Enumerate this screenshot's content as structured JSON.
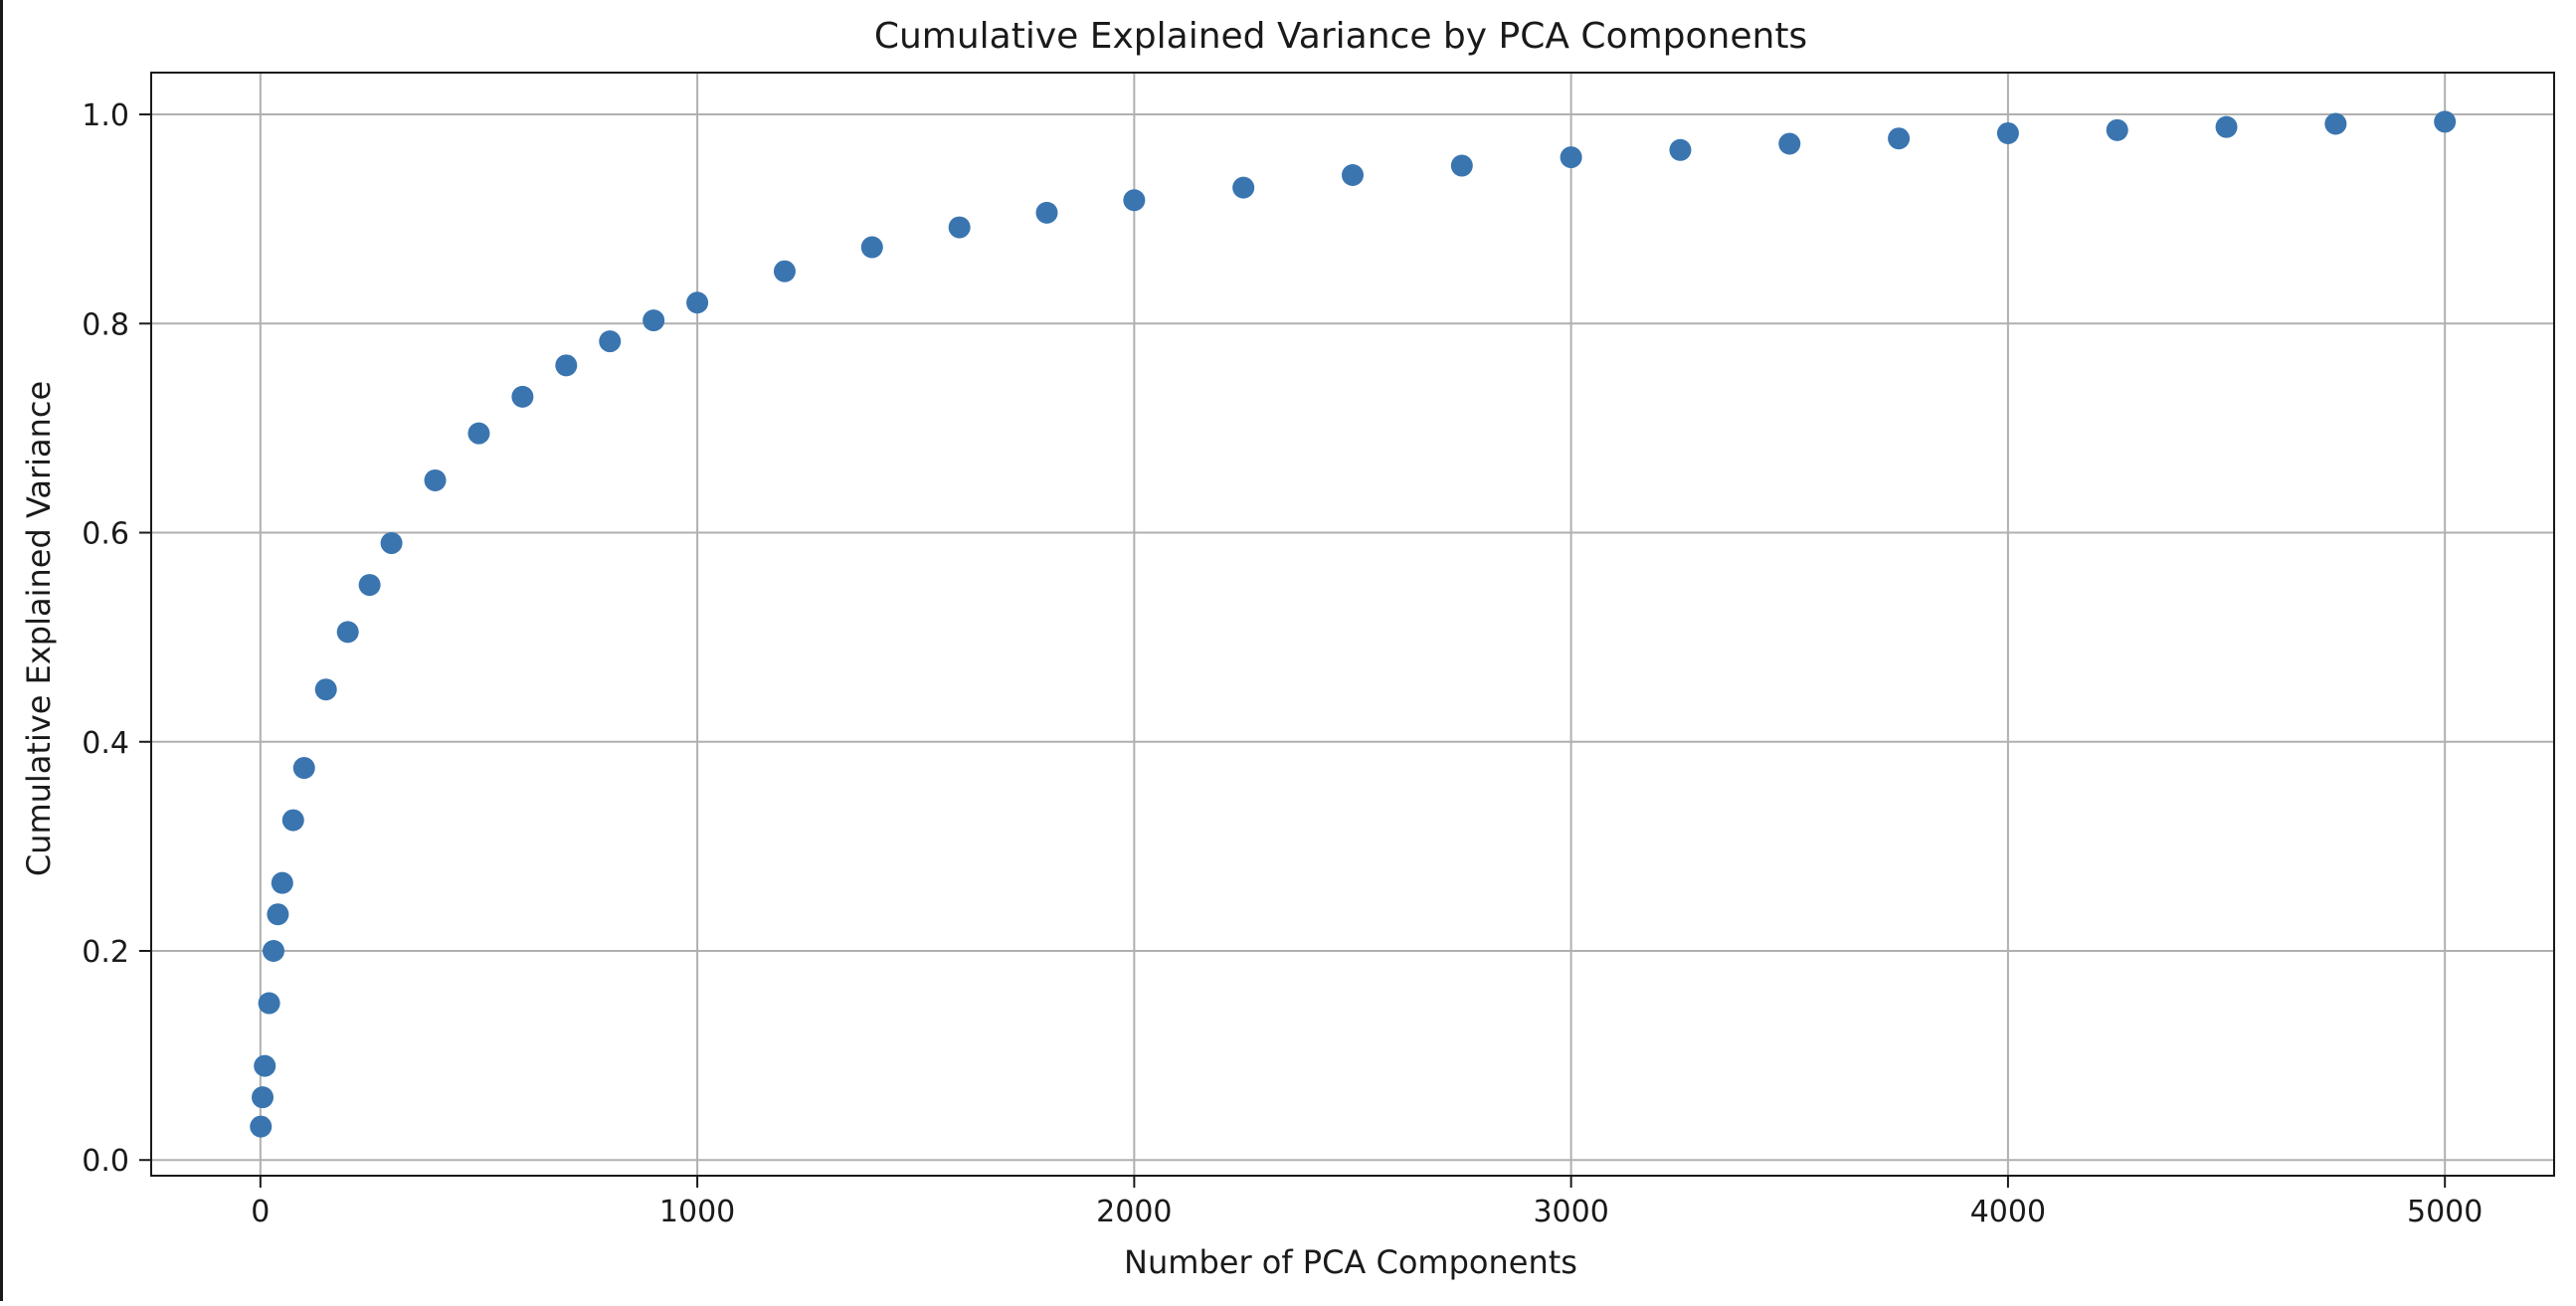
{
  "chart_data": {
    "type": "scatter",
    "title": "Cumulative Explained Variance by PCA Components",
    "xlabel": "Number of PCA Components",
    "ylabel": "Cumulative Explained Variance",
    "xlim": [
      -250,
      5250
    ],
    "ylim": [
      -0.015,
      1.04
    ],
    "xticks": [
      0,
      1000,
      2000,
      3000,
      4000,
      5000
    ],
    "yticks": [
      0.0,
      0.2,
      0.4,
      0.6,
      0.8,
      1.0
    ],
    "xtick_labels": [
      "0",
      "1000",
      "2000",
      "3000",
      "4000",
      "5000"
    ],
    "ytick_labels": [
      "0.0",
      "0.2",
      "0.4",
      "0.6",
      "0.8",
      "1.0"
    ],
    "grid": true,
    "marker_color": "#3a75b0",
    "series": [
      {
        "x": [
          1,
          5,
          10,
          20,
          30,
          40,
          50,
          75,
          100,
          150,
          200,
          250,
          300,
          400,
          500,
          600,
          700,
          800,
          900,
          1000,
          1200,
          1400,
          1600,
          1800,
          2000,
          2250,
          2500,
          2750,
          3000,
          3250,
          3500,
          3750,
          4000,
          4250,
          4500,
          4750,
          5000
        ],
        "values": [
          0.032,
          0.06,
          0.09,
          0.15,
          0.2,
          0.235,
          0.265,
          0.325,
          0.375,
          0.45,
          0.505,
          0.55,
          0.59,
          0.65,
          0.695,
          0.73,
          0.76,
          0.783,
          0.803,
          0.82,
          0.85,
          0.873,
          0.892,
          0.906,
          0.918,
          0.93,
          0.942,
          0.951,
          0.959,
          0.966,
          0.972,
          0.977,
          0.982,
          0.985,
          0.988,
          0.991,
          0.993
        ]
      }
    ]
  }
}
